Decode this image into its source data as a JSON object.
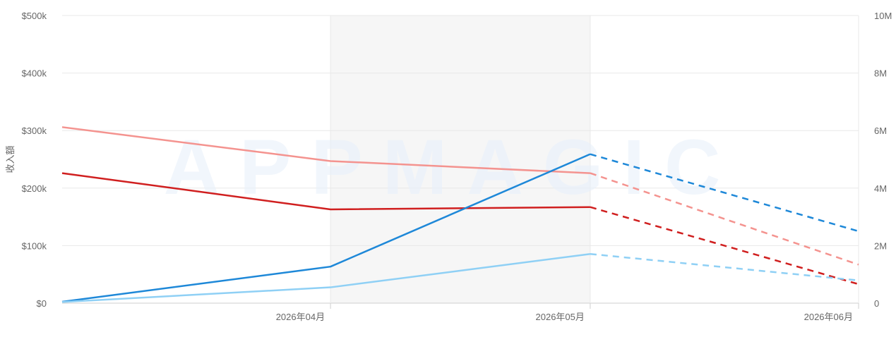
{
  "watermark": "APPMAGIC",
  "chart_data": {
    "type": "line",
    "ylabel": "收入額",
    "y_left": {
      "min": 0,
      "max": 500000,
      "ticks": [
        "$0",
        "$100k",
        "$200k",
        "$300k",
        "$400k",
        "$500k"
      ]
    },
    "y_right": {
      "min": 0,
      "max": 10000000,
      "ticks": [
        "0",
        "2M",
        "4M",
        "6M",
        "8M",
        "10M"
      ]
    },
    "x_ticks": [
      "2026年04月",
      "2026年05月",
      "2026年06月"
    ],
    "highlight_band": [
      "2026年04月",
      "2026年05月"
    ],
    "grid": true,
    "series": [
      {
        "axis": "left",
        "color": "#f4938f",
        "values": [
          [
            "2026-03-01",
            306000
          ],
          [
            "2026-04-01",
            247000
          ],
          [
            "2026-05-01",
            226000
          ]
        ],
        "forecast": [
          [
            "2026-05-01",
            226000
          ],
          [
            "2026-06-01",
            67000
          ]
        ]
      },
      {
        "axis": "left",
        "color": "#d01f1f",
        "values": [
          [
            "2026-03-01",
            226000
          ],
          [
            "2026-04-01",
            163000
          ],
          [
            "2026-05-01",
            167000
          ]
        ],
        "forecast": [
          [
            "2026-05-01",
            167000
          ],
          [
            "2026-06-01",
            33000
          ]
        ]
      },
      {
        "axis": "right",
        "color": "#1e88d8",
        "values": [
          [
            "2026-03-01",
            50000
          ],
          [
            "2026-04-01",
            1270000
          ],
          [
            "2026-05-01",
            5180000
          ]
        ],
        "forecast": [
          [
            "2026-05-01",
            5180000
          ],
          [
            "2026-06-01",
            2500000
          ]
        ]
      },
      {
        "axis": "right",
        "color": "#8fd0f5",
        "values": [
          [
            "2026-03-01",
            40000
          ],
          [
            "2026-04-01",
            550000
          ],
          [
            "2026-05-01",
            1710000
          ]
        ],
        "forecast": [
          [
            "2026-05-01",
            1710000
          ],
          [
            "2026-06-01",
            790000
          ]
        ]
      }
    ]
  }
}
